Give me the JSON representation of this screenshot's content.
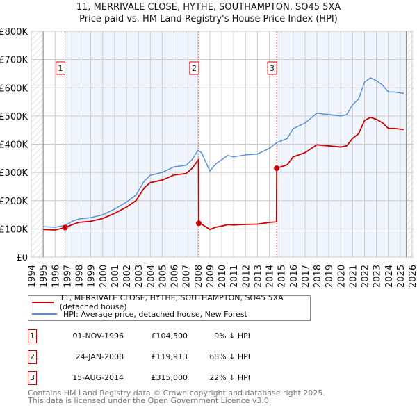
{
  "title": "11, MERRIVALE CLOSE, HYTHE, SOUTHAMPTON, SO45 5XA",
  "subtitle": "Price paid vs. HM Land Registry's House Price Index (HPI)",
  "colors": {
    "property": "#cc0000",
    "hpi": "#5b8fd4",
    "shade": "#f0f5fd"
  },
  "chart_data": {
    "type": "line",
    "xlim": [
      1994,
      2026
    ],
    "ylim": [
      0,
      800000
    ],
    "yticks": [
      {
        "v": 0,
        "label": "£0"
      },
      {
        "v": 100000,
        "label": "£100K"
      },
      {
        "v": 200000,
        "label": "£200K"
      },
      {
        "v": 300000,
        "label": "£300K"
      },
      {
        "v": 400000,
        "label": "£400K"
      },
      {
        "v": 500000,
        "label": "£500K"
      },
      {
        "v": 600000,
        "label": "£600K"
      },
      {
        "v": 700000,
        "label": "£700K"
      },
      {
        "v": 800000,
        "label": "£800K"
      }
    ],
    "xticks": [
      "1994",
      "1995",
      "1996",
      "1997",
      "1998",
      "1999",
      "2000",
      "2001",
      "2002",
      "2003",
      "2004",
      "2005",
      "2006",
      "2007",
      "2008",
      "2009",
      "2010",
      "2011",
      "2012",
      "2013",
      "2014",
      "2015",
      "2016",
      "2017",
      "2018",
      "2019",
      "2020",
      "2021",
      "2022",
      "2023",
      "2024",
      "2025",
      "2026"
    ],
    "data_range": [
      1995,
      2025.5
    ],
    "series": [
      {
        "name": "11, MERRIVALE CLOSE, HYTHE, SOUTHAMPTON, SO45 5XA (detached house)",
        "key": "property",
        "x": [
          1995,
          1996,
          1996.83,
          1997.5,
          1998,
          1999,
          2000,
          2001,
          2002,
          2002.8,
          2003.5,
          2004,
          2005,
          2005.5,
          2006,
          2007,
          2007.5,
          2008.05,
          2008.07,
          2008.3,
          2009,
          2009.5,
          2010,
          2010.5,
          2011,
          2012,
          2013,
          2014,
          2014.6,
          2014.62,
          2015.5,
          2016,
          2017,
          2018,
          2019,
          2020,
          2020.5,
          2021,
          2021.5,
          2022,
          2022.5,
          2023,
          2023.5,
          2024,
          2024.5,
          2025.3
        ],
        "y": [
          98000,
          96000,
          104500,
          116000,
          123000,
          127000,
          137000,
          155000,
          177000,
          200000,
          246000,
          264000,
          273000,
          282000,
          291000,
          296000,
          314000,
          345000,
          119913,
          117000,
          98000,
          106000,
          110000,
          115000,
          114000,
          116000,
          117000,
          123000,
          125000,
          315000,
          327000,
          355000,
          370000,
          398000,
          394000,
          390000,
          394000,
          421000,
          437000,
          484000,
          495000,
          488000,
          476000,
          456000,
          456000,
          452000
        ]
      },
      {
        "name": "HPI: Average price, detached house, New Forest",
        "key": "hpi",
        "x": [
          1995,
          1996,
          1996.83,
          1997.5,
          1998,
          1999,
          2000,
          2001,
          2002,
          2002.8,
          2003.5,
          2004,
          2005,
          2005.5,
          2006,
          2007,
          2007.5,
          2008,
          2008.3,
          2009,
          2009.5,
          2010,
          2010.5,
          2011,
          2012,
          2013,
          2014,
          2014.6,
          2015.5,
          2016,
          2017,
          2018,
          2019,
          2020,
          2020.5,
          2021,
          2021.5,
          2022,
          2022.5,
          2023,
          2023.5,
          2024,
          2024.5,
          2025.3
        ],
        "y": [
          108000,
          106000,
          112000,
          128000,
          135000,
          140000,
          150000,
          170000,
          195000,
          220000,
          270000,
          290000,
          300000,
          310000,
          320000,
          325000,
          345000,
          378000,
          370000,
          305000,
          330000,
          345000,
          360000,
          355000,
          362000,
          365000,
          385000,
          405000,
          420000,
          455000,
          475000,
          510000,
          505000,
          500000,
          505000,
          540000,
          560000,
          620000,
          635000,
          625000,
          610000,
          585000,
          585000,
          580000
        ]
      }
    ],
    "sales": [
      {
        "n": "1",
        "x": 1996.83,
        "y": 104500,
        "date": "01-NOV-1996",
        "price": "£104,500",
        "hpi": "9% ↓ HPI"
      },
      {
        "n": "2",
        "x": 2008.07,
        "y": 119913,
        "date": "24-JAN-2008",
        "price": "£119,913",
        "hpi": "68% ↓ HPI"
      },
      {
        "n": "3",
        "x": 2014.62,
        "y": 315000,
        "date": "15-AUG-2014",
        "price": "£315,000",
        "hpi": "22% ↓ HPI"
      }
    ]
  },
  "legend": {
    "property": "11, MERRIVALE CLOSE, HYTHE, SOUTHAMPTON, SO45 5XA (detached house)",
    "hpi": "HPI: Average price, detached house, New Forest"
  },
  "footer": [
    "Contains HM Land Registry data © Crown copyright and database right 2025.",
    "This data is licensed under the Open Government Licence v3.0."
  ]
}
